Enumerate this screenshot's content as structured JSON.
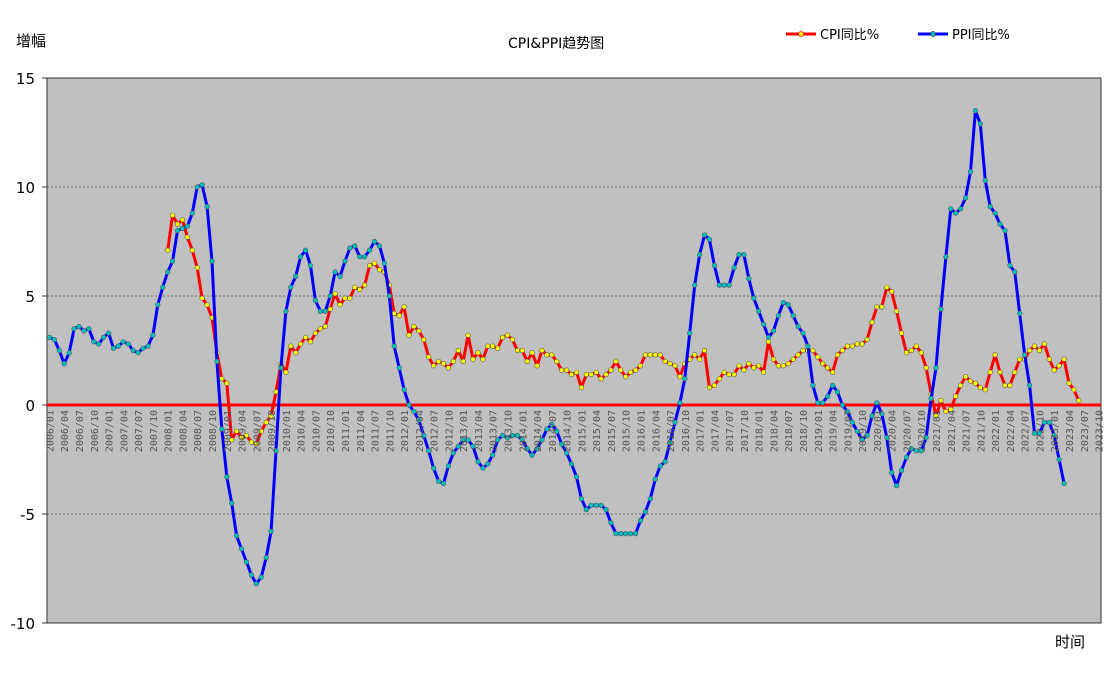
{
  "chart_data": {
    "type": "line",
    "title": "CPI&PPI趋势图",
    "ylabel": "增幅",
    "xlabel": "时间",
    "ylim": [
      -10,
      15
    ],
    "yticks": [
      15,
      10,
      5,
      0,
      -5,
      -10
    ],
    "grid": true,
    "legend_position": "top-right",
    "colors": {
      "plot_bg": "#c0c0c0",
      "cpi_line": "#ff0000",
      "cpi_marker": "#ffff00",
      "ppi_line": "#0000ff",
      "ppi_marker": "#00c0c0",
      "zero_line": "#ff0000"
    },
    "x_start": "2006/01",
    "x_ticks": [
      "2006/01",
      "2006/04",
      "2006/07",
      "2006/10",
      "2007/01",
      "2007/04",
      "2007/07",
      "2007/10",
      "2008/01",
      "2008/04",
      "2008/07",
      "2008/10",
      "2009/01",
      "2009/04",
      "2009/07",
      "2009/10",
      "2010/01",
      "2010/04",
      "2010/07",
      "2010/10",
      "2011/01",
      "2011/04",
      "2011/07",
      "2011/10",
      "2012/01",
      "2012/04",
      "2012/07",
      "2012/10",
      "2013/01",
      "2013/04",
      "2013/07",
      "2013/10",
      "2014/01",
      "2014/04",
      "2014/07",
      "2014/10",
      "2015/01",
      "2015/04",
      "2015/07",
      "2015/10",
      "2016/01",
      "2016/04",
      "2016/07",
      "2016/10",
      "2017/01",
      "2017/04",
      "2017/07",
      "2017/10",
      "2018/01",
      "2018/04",
      "2018/07",
      "2018/10",
      "2019/01",
      "2019/04",
      "2019/07",
      "2019/10",
      "2020/01",
      "2020/04",
      "2020/07",
      "2020/10",
      "2021/01",
      "2021/04",
      "2021/07",
      "2021/10",
      "2022/01",
      "2022/04",
      "2022/07",
      "2022/10",
      "2023/01",
      "2023/04",
      "2023/07",
      "2023/10"
    ],
    "series": [
      {
        "name": "CPI同比%",
        "start": "2008/01",
        "values": [
          7.1,
          8.7,
          8.3,
          8.5,
          7.7,
          7.1,
          6.3,
          4.9,
          4.6,
          4.0,
          2.4,
          1.2,
          1.0,
          -1.6,
          -1.2,
          -1.5,
          -1.4,
          -1.7,
          -1.8,
          -1.2,
          -0.8,
          -0.5,
          0.6,
          1.9,
          1.5,
          2.7,
          2.4,
          2.8,
          3.1,
          2.9,
          3.3,
          3.5,
          3.6,
          4.4,
          5.1,
          4.6,
          4.9,
          4.9,
          5.4,
          5.3,
          5.5,
          6.4,
          6.5,
          6.2,
          6.1,
          5.5,
          4.2,
          4.1,
          4.5,
          3.2,
          3.6,
          3.4,
          3.0,
          2.2,
          1.8,
          2.0,
          1.9,
          1.7,
          2.0,
          2.5,
          2.0,
          3.2,
          2.1,
          2.4,
          2.1,
          2.7,
          2.7,
          2.6,
          3.1,
          3.2,
          3.0,
          2.5,
          2.5,
          2.0,
          2.4,
          1.8,
          2.5,
          2.3,
          2.3,
          2.0,
          1.6,
          1.6,
          1.4,
          1.5,
          0.8,
          1.4,
          1.4,
          1.5,
          1.2,
          1.4,
          1.6,
          2.0,
          1.6,
          1.3,
          1.5,
          1.6,
          1.8,
          2.3,
          2.3,
          2.3,
          2.3,
          2.0,
          1.9,
          1.8,
          1.3,
          1.9,
          2.1,
          2.3,
          2.1,
          2.5,
          0.8,
          0.9,
          1.2,
          1.5,
          1.4,
          1.4,
          1.8,
          1.6,
          1.9,
          1.7,
          1.8,
          1.5,
          2.9,
          2.1,
          1.8,
          1.8,
          1.9,
          2.1,
          2.3,
          2.5,
          2.5,
          2.5,
          2.2,
          1.9,
          1.7,
          1.5,
          2.3,
          2.5,
          2.7,
          2.7,
          2.8,
          2.8,
          3.0,
          3.8,
          4.5,
          4.5,
          5.4,
          5.2,
          4.3,
          3.3,
          2.4,
          2.5,
          2.7,
          2.4,
          1.7,
          0.5,
          -0.5,
          0.2,
          -0.3,
          -0.2,
          0.4,
          0.9,
          1.3,
          1.1,
          1.0,
          0.8,
          0.7,
          1.5,
          2.3,
          1.5,
          0.9,
          0.9,
          1.5,
          2.1,
          2.1,
          2.5,
          2.7,
          2.5,
          2.8,
          2.1,
          1.6,
          1.8,
          2.1,
          1.0,
          0.7,
          0.2
        ]
      },
      {
        "name": "PPI同比%",
        "start": "2006/01",
        "values": [
          3.1,
          3.0,
          2.5,
          1.9,
          2.4,
          3.5,
          3.6,
          3.4,
          3.5,
          2.9,
          2.8,
          3.1,
          3.3,
          2.6,
          2.7,
          2.9,
          2.8,
          2.5,
          2.4,
          2.6,
          2.7,
          3.2,
          4.6,
          5.4,
          6.1,
          6.6,
          8.0,
          8.1,
          8.2,
          8.8,
          10.0,
          10.1,
          9.1,
          6.6,
          2.0,
          -1.1,
          -3.3,
          -4.5,
          -6.0,
          -6.6,
          -7.2,
          -7.8,
          -8.2,
          -7.9,
          -7.0,
          -5.8,
          -2.1,
          1.7,
          4.3,
          5.4,
          5.9,
          6.8,
          7.1,
          6.4,
          4.8,
          4.3,
          4.3,
          5.0,
          6.1,
          5.9,
          6.6,
          7.2,
          7.3,
          6.8,
          6.8,
          7.1,
          7.5,
          7.3,
          6.5,
          5.0,
          2.7,
          1.7,
          0.7,
          0.0,
          -0.3,
          -0.7,
          -1.4,
          -2.1,
          -2.9,
          -3.5,
          -3.6,
          -2.8,
          -2.2,
          -1.9,
          -1.6,
          -1.6,
          -1.9,
          -2.6,
          -2.9,
          -2.7,
          -2.3,
          -1.6,
          -1.4,
          -1.5,
          -1.4,
          -1.4,
          -1.6,
          -2.0,
          -2.3,
          -2.0,
          -1.6,
          -1.1,
          -0.9,
          -1.2,
          -1.8,
          -2.2,
          -2.7,
          -3.3,
          -4.3,
          -4.8,
          -4.6,
          -4.6,
          -4.6,
          -4.8,
          -5.4,
          -5.9,
          -5.9,
          -5.9,
          -5.9,
          -5.9,
          -5.3,
          -4.9,
          -4.3,
          -3.4,
          -2.8,
          -2.6,
          -1.7,
          -0.8,
          0.1,
          1.2,
          3.3,
          5.5,
          6.9,
          7.8,
          7.6,
          6.4,
          5.5,
          5.5,
          5.5,
          6.3,
          6.9,
          6.9,
          5.8,
          4.9,
          4.3,
          3.7,
          3.1,
          3.4,
          4.1,
          4.7,
          4.6,
          4.1,
          3.6,
          3.3,
          2.7,
          0.9,
          0.1,
          0.1,
          0.4,
          0.9,
          0.6,
          0.0,
          -0.3,
          -0.8,
          -1.2,
          -1.6,
          -1.4,
          -0.5,
          0.1,
          -0.4,
          -1.5,
          -3.1,
          -3.7,
          -3.0,
          -2.4,
          -2.0,
          -2.1,
          -2.1,
          -1.5,
          0.3,
          1.7,
          4.4,
          6.8,
          9.0,
          8.8,
          9.0,
          9.5,
          10.7,
          13.5,
          12.9,
          10.3,
          9.1,
          8.8,
          8.3,
          8.0,
          6.4,
          6.1,
          4.2,
          2.3,
          0.9,
          -1.3,
          -1.3,
          -0.8,
          -0.8,
          -1.4,
          -2.5,
          -3.6
        ]
      }
    ]
  }
}
